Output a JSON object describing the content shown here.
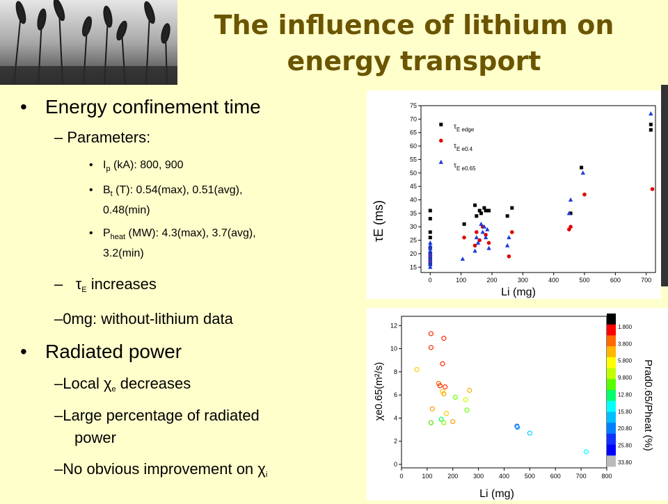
{
  "slide": {
    "title_line1": "The influence of lithium on",
    "title_line2": "energy transport"
  },
  "bullets": {
    "energy": "Energy confinement time",
    "parameters": "Parameters:",
    "ip_pre": "I",
    "ip_sub": "p",
    "ip_post": " (kA): 800, 900",
    "bt_pre": "B",
    "bt_sub": "t",
    "bt_post": " (T): 0.54(max), 0.51(avg),",
    "bt_line2": "0.48(min)",
    "ph_pre": "P",
    "ph_sub": "heat",
    "ph_post": " (MW): 4.3(max), 3.7(avg),",
    "ph_line2": "3.2(min)",
    "tau_dash": "–",
    "tau_sym": "τ",
    "tau_sub": "E",
    "tau_post": " increases",
    "zero_mg": "0mg: without-lithium data",
    "radiated": "Radiated power",
    "local_pre": "Local ",
    "local_sym": "χ",
    "local_sub": "e",
    "local_post": " decreases",
    "large_line1": "Large percentage of radiated",
    "large_line2": "power",
    "noimp_pre": "No obvious improvement on ",
    "noimp_sym": "χ",
    "noimp_sub": "i"
  },
  "chart_data": [
    {
      "type": "scatter",
      "xlabel": "Li (mg)",
      "ylabel": "τE (ms)",
      "xlim": [
        -30,
        730
      ],
      "ylim": [
        13,
        75
      ],
      "xticks": [
        0,
        100,
        200,
        300,
        400,
        500,
        600,
        700
      ],
      "yticks": [
        15,
        20,
        25,
        30,
        35,
        40,
        45,
        50,
        55,
        60,
        65,
        70,
        75
      ],
      "series": [
        {
          "name": "τE edge",
          "color": "#000000",
          "marker": "square",
          "points": [
            [
              0,
              36
            ],
            [
              0,
              33
            ],
            [
              0,
              28
            ],
            [
              0,
              26
            ],
            [
              0,
              22
            ],
            [
              0,
              20
            ],
            [
              0,
              18
            ],
            [
              0,
              16
            ],
            [
              110,
              31
            ],
            [
              145,
              38
            ],
            [
              150,
              34
            ],
            [
              160,
              36
            ],
            [
              165,
              35
            ],
            [
              175,
              37
            ],
            [
              180,
              36
            ],
            [
              190,
              36
            ],
            [
              250,
              34
            ],
            [
              265,
              37
            ],
            [
              455,
              35
            ],
            [
              490,
              52
            ],
            [
              715,
              66
            ],
            [
              715,
              68
            ],
            [
              35,
              68
            ]
          ]
        },
        {
          "name": "τE e0.4",
          "color": "#e00000",
          "marker": "circle",
          "points": [
            [
              0,
              17
            ],
            [
              0,
              19
            ],
            [
              110,
              26
            ],
            [
              145,
              23
            ],
            [
              150,
              28
            ],
            [
              160,
              25
            ],
            [
              170,
              30
            ],
            [
              180,
              27
            ],
            [
              190,
              24
            ],
            [
              255,
              19
            ],
            [
              265,
              28
            ],
            [
              450,
              29
            ],
            [
              455,
              30
            ],
            [
              500,
              42
            ],
            [
              720,
              44
            ],
            [
              35,
              62
            ]
          ]
        },
        {
          "name": "τE e0.65",
          "color": "#1e3adb",
          "marker": "triangle",
          "points": [
            [
              0,
              15
            ],
            [
              0,
              16
            ],
            [
              0,
              17
            ],
            [
              0,
              18
            ],
            [
              0,
              19
            ],
            [
              0,
              20
            ],
            [
              0,
              21
            ],
            [
              0,
              22
            ],
            [
              0,
              23
            ],
            [
              0,
              24
            ],
            [
              105,
              18
            ],
            [
              145,
              21
            ],
            [
              150,
              26
            ],
            [
              155,
              24
            ],
            [
              165,
              31
            ],
            [
              170,
              28
            ],
            [
              175,
              30
            ],
            [
              180,
              26
            ],
            [
              185,
              29
            ],
            [
              190,
              22
            ],
            [
              250,
              23
            ],
            [
              255,
              26
            ],
            [
              450,
              35
            ],
            [
              455,
              40
            ],
            [
              495,
              50
            ],
            [
              715,
              72
            ],
            [
              35,
              54
            ]
          ]
        }
      ]
    },
    {
      "type": "scatter",
      "xlabel": "Li (mg)",
      "ylabel": "χe0.65(m²/s)",
      "xlim": [
        0,
        800
      ],
      "ylim": [
        -0.3,
        12.8
      ],
      "xticks": [
        0,
        100,
        200,
        300,
        400,
        500,
        600,
        700,
        800
      ],
      "yticks": [
        0,
        2,
        4,
        6,
        8,
        10,
        12
      ],
      "colorbar": {
        "title": "Prad0.65/Pheat (%)",
        "labels": [
          "1.800",
          "3.800",
          "5.800",
          "9.800",
          "12.80",
          "15.80",
          "20.80",
          "25.80",
          "33.80"
        ],
        "colors": [
          "#000000",
          "#ff0000",
          "#ff6a00",
          "#ffb700",
          "#ffff00",
          "#bfff00",
          "#55ff00",
          "#00ff6a",
          "#00ffff",
          "#00bfff",
          "#0080ff",
          "#1030ff",
          "#0000ff",
          "#bbbbbb"
        ]
      },
      "points": [
        [
          115,
          11.3,
          "#ff2a00"
        ],
        [
          165,
          10.9,
          "#ff2a00"
        ],
        [
          115,
          10.1,
          "#ff2a00"
        ],
        [
          160,
          8.7,
          "#ff2a00"
        ],
        [
          60,
          8.2,
          "#ffcc00"
        ],
        [
          145,
          7.0,
          "#ff6a00"
        ],
        [
          150,
          6.8,
          "#ff2a00"
        ],
        [
          170,
          6.7,
          "#ff2a00"
        ],
        [
          165,
          6.1,
          "#ff9900"
        ],
        [
          160,
          6.3,
          "#ffcc00"
        ],
        [
          265,
          6.4,
          "#ffaa00"
        ],
        [
          210,
          5.8,
          "#66ff00"
        ],
        [
          250,
          5.6,
          "#ccff00"
        ],
        [
          120,
          4.8,
          "#ff9900"
        ],
        [
          255,
          4.7,
          "#66ff00"
        ],
        [
          175,
          4.4,
          "#ffcc00"
        ],
        [
          155,
          3.9,
          "#00ff55"
        ],
        [
          115,
          3.6,
          "#66dd00"
        ],
        [
          165,
          3.6,
          "#88ff00"
        ],
        [
          200,
          3.7,
          "#ff9900"
        ],
        [
          450,
          3.3,
          "#1040ff"
        ],
        [
          452,
          3.2,
          "#00aaff"
        ],
        [
          500,
          2.7,
          "#00ccff"
        ],
        [
          720,
          1.1,
          "#00ffff"
        ]
      ]
    }
  ]
}
